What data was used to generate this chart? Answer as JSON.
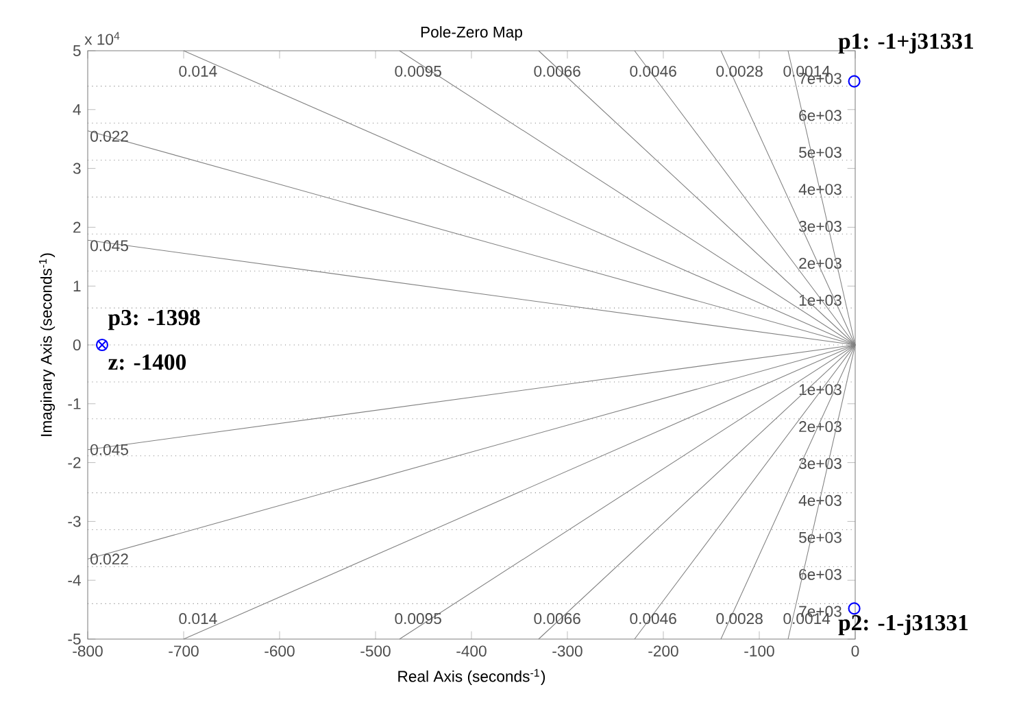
{
  "chart_data": {
    "type": "line",
    "title": "Pole-Zero Map",
    "xlabel": "Real Axis (seconds$^{-1}$)",
    "ylabel": "Imaginary Axis (seconds$^{-1}$)",
    "xlim": [
      -800,
      0
    ],
    "ylim": [
      -5,
      5
    ],
    "xticks": [
      -800,
      -700,
      -600,
      -500,
      -400,
      -300,
      -200,
      -100,
      0
    ],
    "yticks": [
      -5,
      -4,
      -3,
      -2,
      -1,
      0,
      1,
      2,
      3,
      4,
      5
    ],
    "series": [
      {
        "color": "#808080",
        "x": [
          -700,
          0,
          -700
        ],
        "values": [
          5,
          0,
          -5
        ]
      },
      {
        "color": "#808080",
        "x": [
          -475,
          0,
          -475
        ],
        "values": [
          5,
          0,
          -5
        ]
      },
      {
        "color": "#808080",
        "x": [
          -330,
          0,
          -330
        ],
        "values": [
          5,
          0,
          -5
        ]
      },
      {
        "color": "#808080",
        "x": [
          -230,
          0,
          -230
        ],
        "values": [
          5,
          0,
          -5
        ]
      },
      {
        "color": "#808080",
        "x": [
          -140,
          0,
          -140
        ],
        "values": [
          5,
          0,
          -5
        ]
      },
      {
        "color": "#808080",
        "x": [
          -70,
          0,
          -70
        ],
        "values": [
          5,
          0,
          -5
        ]
      },
      {
        "color": "#808080",
        "x": [
          -800,
          0,
          -800
        ],
        "values": [
          3.64,
          0,
          -3.64
        ]
      },
      {
        "color": "#808080",
        "x": [
          -800,
          0,
          -800
        ],
        "values": [
          1.78,
          0,
          -1.78
        ]
      },
      {
        "type": "scatter",
        "marker": "circle",
        "color": "#0000ff",
        "x": [
          -1,
          -1,
          -785
        ],
        "values": [
          4.48,
          -4.48,
          0
        ]
      },
      {
        "type": "scatter",
        "marker": "cross",
        "color": "#0000ff",
        "x": [
          -785
        ],
        "values": [
          0
        ]
      }
    ],
    "ref_lines": [
      {
        "axis": "y",
        "value": 0.6283,
        "label": "1e+03",
        "color": "#808080",
        "line_style": "dotted"
      },
      {
        "axis": "y",
        "value": 1.2566,
        "label": "2e+03",
        "color": "#808080",
        "line_style": "dotted"
      },
      {
        "axis": "y",
        "value": 1.885,
        "label": "3e+03",
        "color": "#808080",
        "line_style": "dotted"
      },
      {
        "axis": "y",
        "value": 2.5133,
        "label": "4e+03",
        "color": "#808080",
        "line_style": "dotted"
      },
      {
        "axis": "y",
        "value": 3.1416,
        "label": "5e+03",
        "color": "#808080",
        "line_style": "dotted"
      },
      {
        "axis": "y",
        "value": 3.7699,
        "label": "6e+03",
        "color": "#808080",
        "line_style": "dotted"
      },
      {
        "axis": "y",
        "value": 4.3982,
        "label": "7e+03",
        "color": "#808080",
        "line_style": "dotted"
      },
      {
        "axis": "y",
        "value": 0,
        "color": "#808080",
        "line_style": "dotted"
      },
      {
        "axis": "y",
        "value": -0.6283,
        "label": "1e+03",
        "color": "#808080",
        "line_style": "dotted"
      },
      {
        "axis": "y",
        "value": -1.2566,
        "label": "2e+03",
        "color": "#808080",
        "line_style": "dotted"
      },
      {
        "axis": "y",
        "value": -1.885,
        "label": "3e+03",
        "color": "#808080",
        "line_style": "dotted"
      },
      {
        "axis": "y",
        "value": -2.5133,
        "label": "4e+03",
        "color": "#808080",
        "line_style": "dotted"
      },
      {
        "axis": "y",
        "value": -3.1416,
        "label": "5e+03",
        "color": "#808080",
        "line_style": "dotted"
      },
      {
        "axis": "y",
        "value": -3.7699,
        "label": "6e+03",
        "color": "#808080",
        "line_style": "dotted"
      },
      {
        "axis": "y",
        "value": -4.3982,
        "label": "7e+03",
        "color": "#808080",
        "line_style": "dotted"
      }
    ],
    "line_style": "solid",
    "annotations": [
      "x 10$^{4}$",
      {
        "text": "0.014",
        "x": -700,
        "y": 5
      },
      {
        "text": "0.0095",
        "x": -475,
        "y": 5
      },
      {
        "text": "0.0066",
        "x": -330,
        "y": 5
      },
      {
        "text": "0.0046",
        "x": -230,
        "y": 5
      },
      {
        "text": "0.0028",
        "x": -140,
        "y": 5
      },
      {
        "text": "0.0014",
        "x": -70,
        "y": 5
      },
      {
        "text": "0.022",
        "x": -800,
        "y": 3.64
      },
      {
        "text": "0.045",
        "x": -800,
        "y": 1.78
      },
      {
        "text": "0.014",
        "x": -700,
        "y": -5
      },
      {
        "text": "0.0095",
        "x": -475,
        "y": -5
      },
      {
        "text": "0.0066",
        "x": -330,
        "y": -5
      },
      {
        "text": "0.0046",
        "x": -230,
        "y": -5
      },
      {
        "text": "0.0028",
        "x": -140,
        "y": -5
      },
      {
        "text": "0.0014",
        "x": -70,
        "y": -5
      },
      {
        "text": "0.022",
        "x": -800,
        "y": -3.64
      },
      {
        "text": "0.045",
        "x": -800,
        "y": -1.78
      },
      {
        "text": "p1: -1+j31331",
        "x": -1,
        "y": 4.48
      },
      {
        "text": "p2: -1-j31331",
        "x": -1,
        "y": -4.48
      },
      {
        "text": "p3: -1398",
        "x": -785,
        "y": 0
      },
      {
        "text": "z: -1400",
        "x": -785,
        "y": 0
      }
    ]
  }
}
